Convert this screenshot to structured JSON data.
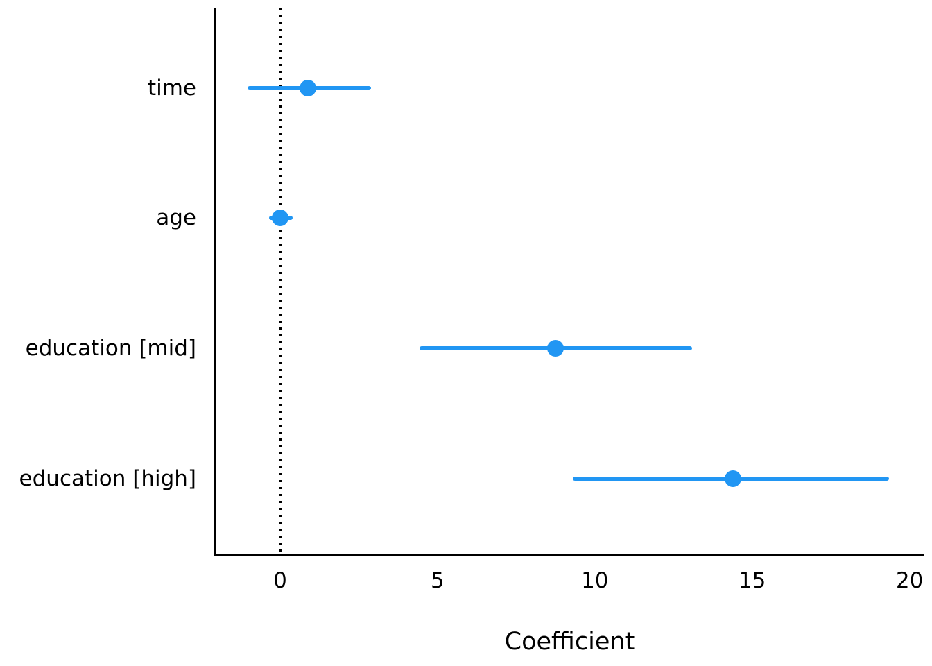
{
  "figure": {
    "background": "#ffffff"
  },
  "chart_data": {
    "type": "scatter",
    "subtype": "coefficient_plot_with_error_bars",
    "title": "",
    "xlabel": "Coefficient",
    "ylabel": "",
    "categories": [
      "time",
      "age",
      "education [mid]",
      "education [high]"
    ],
    "estimates": [
      0.89,
      0.01,
      8.74,
      14.38
    ],
    "ci_low": [
      -1.04,
      -0.36,
      4.43,
      9.31
    ],
    "ci_high": [
      2.88,
      0.39,
      13.08,
      19.34
    ],
    "xlim": [
      -2.05,
      20.45
    ],
    "xticks": [
      0,
      5,
      10,
      15,
      20
    ],
    "xticklabels": [
      "0",
      "5",
      "10",
      "15",
      "20"
    ],
    "reference_line_x": 0,
    "reference_line_style": "dotted",
    "grid": false,
    "legend": false,
    "marker_color": "#2196F3",
    "axis_color": "#000000",
    "row_fractions": [
      0.146,
      0.384,
      0.622,
      0.861
    ]
  }
}
